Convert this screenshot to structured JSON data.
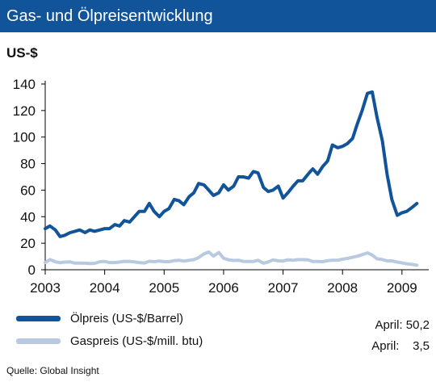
{
  "header": {
    "title": "Gas- und Ölpreisentwicklung"
  },
  "unit_label": "US-$",
  "chart_data": {
    "type": "line",
    "title": "Gas- und Ölpreisentwicklung",
    "ylabel": "US-$",
    "xlabel": "",
    "ylim": [
      0,
      140
    ],
    "yticks": [
      0,
      20,
      40,
      60,
      80,
      100,
      120,
      140
    ],
    "xlim": [
      2003.0,
      2009.45
    ],
    "xticks": [
      2003,
      2004,
      2005,
      2006,
      2007,
      2008,
      2009
    ],
    "grid": false,
    "legend_position": "bottom-left",
    "series": [
      {
        "name": "Ölpreis (US-$/Barrel)",
        "color": "#11549a",
        "x": [
          2003.0,
          2003.08,
          2003.17,
          2003.25,
          2003.33,
          2003.42,
          2003.5,
          2003.58,
          2003.67,
          2003.75,
          2003.83,
          2003.92,
          2004.0,
          2004.08,
          2004.17,
          2004.25,
          2004.33,
          2004.42,
          2004.5,
          2004.58,
          2004.67,
          2004.75,
          2004.83,
          2004.92,
          2005.0,
          2005.08,
          2005.17,
          2005.25,
          2005.33,
          2005.42,
          2005.5,
          2005.58,
          2005.67,
          2005.75,
          2005.83,
          2005.92,
          2006.0,
          2006.08,
          2006.17,
          2006.25,
          2006.33,
          2006.42,
          2006.5,
          2006.58,
          2006.67,
          2006.75,
          2006.83,
          2006.92,
          2007.0,
          2007.08,
          2007.17,
          2007.25,
          2007.33,
          2007.42,
          2007.5,
          2007.58,
          2007.67,
          2007.75,
          2007.83,
          2007.92,
          2008.0,
          2008.08,
          2008.17,
          2008.25,
          2008.33,
          2008.42,
          2008.5,
          2008.58,
          2008.67,
          2008.75,
          2008.83,
          2008.92,
          2009.0,
          2009.08,
          2009.17,
          2009.25
        ],
        "values": [
          31,
          33,
          30,
          25,
          26,
          28,
          29,
          30,
          28,
          30,
          29,
          30,
          31,
          31,
          34,
          33,
          37,
          36,
          40,
          44,
          44,
          50,
          44,
          40,
          44,
          46,
          53,
          52,
          49,
          55,
          58,
          65,
          64,
          60,
          56,
          58,
          64,
          60,
          63,
          70,
          70,
          69,
          74,
          73,
          62,
          59,
          60,
          63,
          54,
          58,
          63,
          67,
          67,
          72,
          76,
          72,
          78,
          82,
          94,
          92,
          93,
          95,
          99,
          110,
          120,
          133,
          134,
          115,
          97,
          72,
          53,
          41,
          43,
          44,
          47,
          50
        ]
      },
      {
        "name": "Gaspreis (US-$/mill. btu)",
        "color": "#b9c9e0",
        "x": [
          2003.0,
          2003.08,
          2003.17,
          2003.25,
          2003.33,
          2003.42,
          2003.5,
          2003.58,
          2003.67,
          2003.75,
          2003.83,
          2003.92,
          2004.0,
          2004.08,
          2004.17,
          2004.25,
          2004.33,
          2004.42,
          2004.5,
          2004.58,
          2004.67,
          2004.75,
          2004.83,
          2004.92,
          2005.0,
          2005.08,
          2005.17,
          2005.25,
          2005.33,
          2005.42,
          2005.5,
          2005.58,
          2005.67,
          2005.75,
          2005.83,
          2005.92,
          2006.0,
          2006.08,
          2006.17,
          2006.25,
          2006.33,
          2006.42,
          2006.5,
          2006.58,
          2006.67,
          2006.75,
          2006.83,
          2006.92,
          2007.0,
          2007.08,
          2007.17,
          2007.25,
          2007.33,
          2007.42,
          2007.5,
          2007.58,
          2007.67,
          2007.75,
          2007.83,
          2007.92,
          2008.0,
          2008.08,
          2008.17,
          2008.25,
          2008.33,
          2008.42,
          2008.5,
          2008.58,
          2008.67,
          2008.75,
          2008.83,
          2008.92,
          2009.0,
          2009.08,
          2009.17,
          2009.25
        ],
        "values": [
          5.5,
          7.7,
          6,
          5.3,
          5.8,
          5.9,
          5,
          5,
          4.9,
          4.7,
          4.8,
          6.1,
          6.2,
          5.4,
          5.4,
          5.8,
          6.3,
          6.2,
          5.9,
          5.4,
          5.1,
          6.4,
          6.1,
          6.6,
          6.1,
          6.1,
          6.9,
          7.2,
          6.5,
          7.1,
          7.6,
          9.2,
          11.9,
          13.4,
          10.3,
          13.0,
          8.7,
          7.5,
          7.0,
          7.2,
          6.3,
          6.2,
          6.2,
          7.1,
          4.9,
          5.9,
          7.4,
          6.7,
          6.6,
          7.5,
          7.1,
          7.6,
          7.6,
          7.4,
          6.2,
          6.2,
          6.1,
          6.8,
          7.1,
          7.1,
          8.0,
          8.5,
          9.4,
          10.2,
          11.3,
          12.7,
          11.1,
          8.3,
          7.7,
          6.7,
          6.7,
          5.8,
          5.2,
          4.5,
          4.0,
          3.5
        ]
      }
    ],
    "annotations": [
      {
        "label": "April:",
        "value": "50,2"
      },
      {
        "label": "April:",
        "value": "3,5"
      }
    ],
    "source": "Quelle: Global Insight"
  }
}
